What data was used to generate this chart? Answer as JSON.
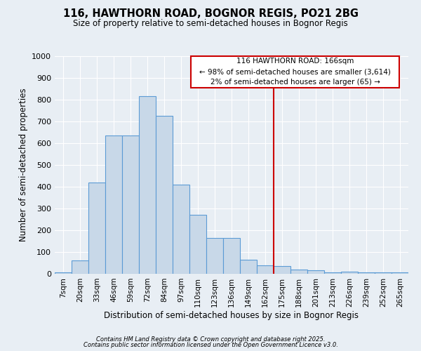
{
  "title1": "116, HAWTHORN ROAD, BOGNOR REGIS, PO21 2BG",
  "title2": "Size of property relative to semi-detached houses in Bognor Regis",
  "xlabel": "Distribution of semi-detached houses by size in Bognor Regis",
  "ylabel": "Number of semi-detached properties",
  "categories": [
    "7sqm",
    "20sqm",
    "33sqm",
    "46sqm",
    "59sqm",
    "72sqm",
    "84sqm",
    "97sqm",
    "110sqm",
    "123sqm",
    "136sqm",
    "149sqm",
    "162sqm",
    "175sqm",
    "188sqm",
    "201sqm",
    "213sqm",
    "226sqm",
    "239sqm",
    "252sqm",
    "265sqm"
  ],
  "values": [
    5,
    60,
    420,
    635,
    635,
    815,
    725,
    410,
    270,
    165,
    165,
    65,
    40,
    35,
    18,
    15,
    5,
    10,
    5,
    5,
    5
  ],
  "bar_color": "#c8d8e8",
  "bar_edge_color": "#5b9bd5",
  "background_color": "#e8eef4",
  "grid_color": "#ffffff",
  "vline_x": 12.5,
  "vline_color": "#cc0000",
  "annotation_box_color": "#cc0000",
  "annotation_text1": "116 HAWTHORN ROAD: 166sqm",
  "annotation_text2": "← 98% of semi-detached houses are smaller (3,614)",
  "annotation_text3": "2% of semi-detached houses are larger (65) →",
  "ylim": [
    0,
    1000
  ],
  "yticks": [
    0,
    100,
    200,
    300,
    400,
    500,
    600,
    700,
    800,
    900,
    1000
  ],
  "footer1": "Contains HM Land Registry data © Crown copyright and database right 2025.",
  "footer2": "Contains public sector information licensed under the Open Government Licence v3.0."
}
